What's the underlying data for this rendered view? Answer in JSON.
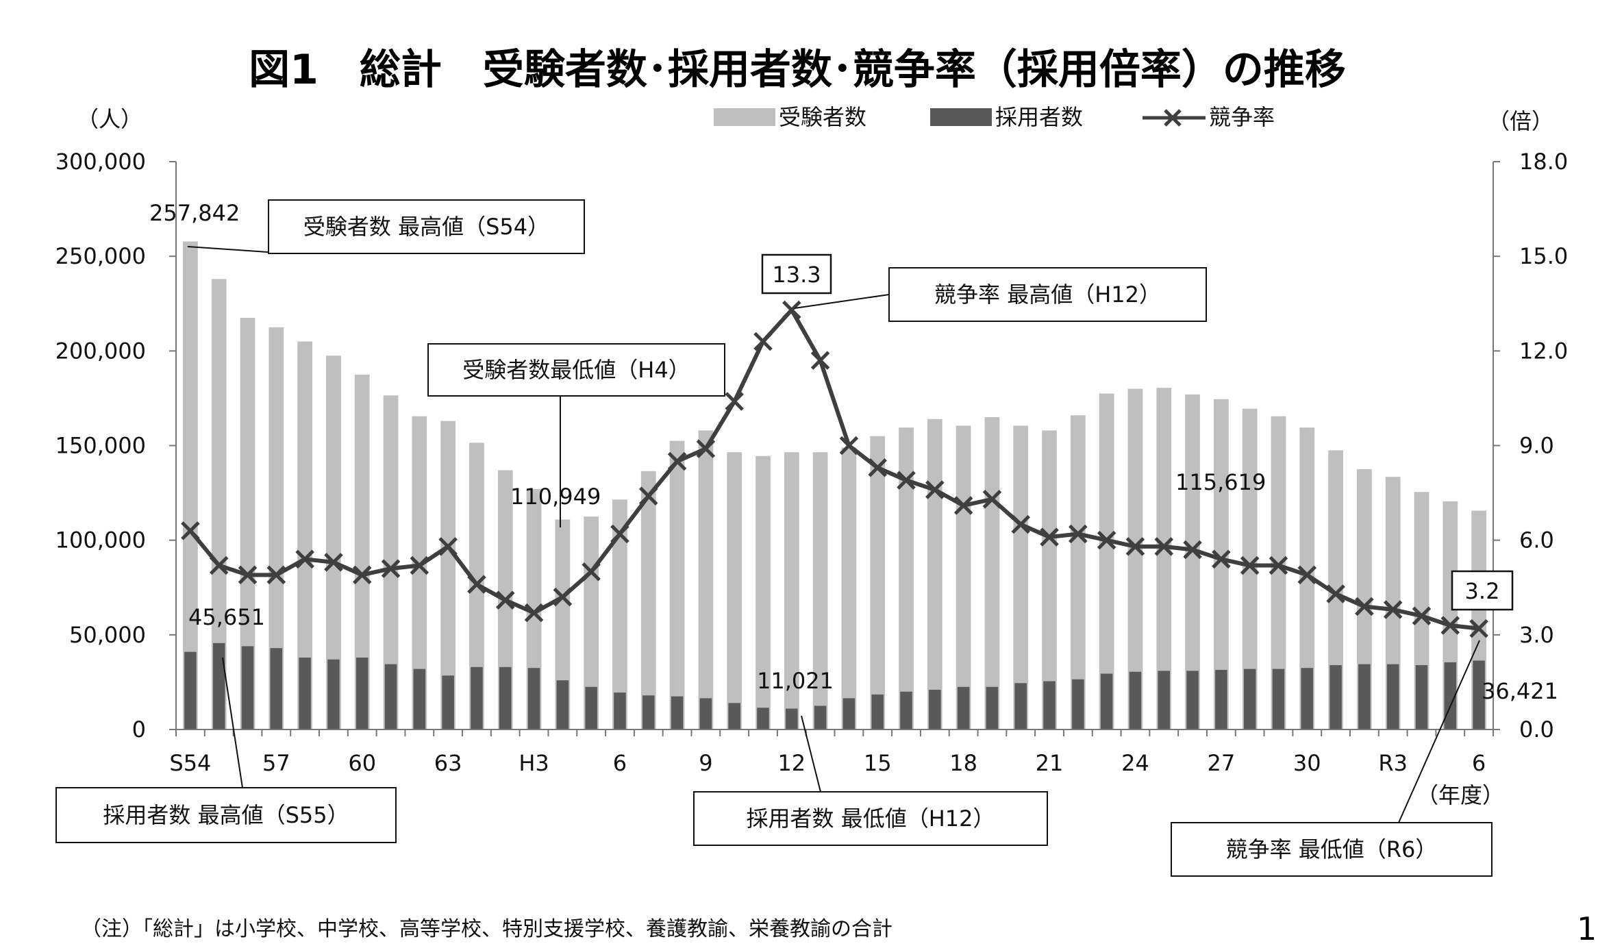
{
  "chart_data": {
    "type": "bar",
    "title": "図1　総計　受験者数･採用者数･競争率（採用倍率）の推移",
    "left_unit": "（人）",
    "right_unit": "（倍）",
    "x_unit": "（年度）",
    "left_ylim": [
      0,
      300000
    ],
    "right_ylim": [
      0,
      18
    ],
    "left_ticks": [
      "0",
      "50,000",
      "100,000",
      "150,000",
      "200,000",
      "250,000",
      "300,000"
    ],
    "right_ticks": [
      "0.0",
      "3.0",
      "6.0",
      "9.0",
      "12.0",
      "15.0",
      "18.0"
    ],
    "x_tick_labels": [
      "S54",
      "57",
      "60",
      "63",
      "H3",
      "6",
      "9",
      "12",
      "15",
      "18",
      "21",
      "24",
      "27",
      "30",
      "R3",
      "6"
    ],
    "legend": [
      "受験者数",
      "採用者数",
      "競争率"
    ],
    "legend_position": "top",
    "categories": [
      "S54",
      "S55",
      "S56",
      "S57",
      "S58",
      "S59",
      "S60",
      "S61",
      "S62",
      "S63",
      "H1",
      "H2",
      "H3",
      "H4",
      "H5",
      "H6",
      "H7",
      "H8",
      "H9",
      "H10",
      "H11",
      "H12",
      "H13",
      "H14",
      "H15",
      "H16",
      "H17",
      "H18",
      "H19",
      "H20",
      "H21",
      "H22",
      "H23",
      "H24",
      "H25",
      "H26",
      "H27",
      "H28",
      "H29",
      "H30",
      "R1",
      "R2",
      "R3",
      "R4",
      "R5",
      "R6"
    ],
    "series": [
      {
        "name": "受験者数",
        "type": "bar",
        "axis": "left",
        "color": "#bfbfbf",
        "values": [
          257842,
          238000,
          217500,
          212500,
          205000,
          197500,
          187500,
          176500,
          165500,
          163000,
          151500,
          137000,
          127000,
          110949,
          112500,
          121500,
          136500,
          152500,
          158000,
          146500,
          144500,
          146500,
          146500,
          149000,
          155000,
          159500,
          164000,
          160500,
          165000,
          160500,
          158000,
          166000,
          177500,
          180000,
          180500,
          177000,
          174500,
          169500,
          165500,
          159500,
          147500,
          137500,
          133500,
          125500,
          120500,
          115619
        ]
      },
      {
        "name": "採用者数",
        "type": "bar",
        "axis": "left",
        "color": "#595959",
        "values": [
          41000,
          45651,
          44000,
          43000,
          38000,
          37000,
          38000,
          34500,
          32000,
          28500,
          33000,
          33000,
          32500,
          26000,
          22500,
          19500,
          18000,
          17500,
          16500,
          14000,
          11500,
          11021,
          12500,
          16500,
          18500,
          20000,
          21000,
          22500,
          22500,
          24500,
          25500,
          26500,
          29500,
          30500,
          31000,
          31000,
          31500,
          32000,
          32000,
          32500,
          34000,
          34500,
          34500,
          34000,
          35500,
          36421
        ]
      },
      {
        "name": "競争率",
        "type": "line",
        "axis": "right",
        "color": "#3f3f3f",
        "values": [
          6.3,
          5.2,
          4.9,
          4.9,
          5.4,
          5.3,
          4.9,
          5.1,
          5.2,
          5.8,
          4.6,
          4.1,
          3.7,
          4.2,
          5.0,
          6.2,
          7.4,
          8.5,
          8.9,
          10.4,
          12.3,
          13.3,
          11.7,
          9.0,
          8.3,
          7.9,
          7.6,
          7.1,
          7.3,
          6.5,
          6.1,
          6.2,
          6.0,
          5.8,
          5.8,
          5.7,
          5.4,
          5.2,
          5.2,
          4.9,
          4.3,
          3.9,
          3.8,
          3.6,
          3.3,
          3.2
        ]
      }
    ],
    "data_labels": [
      {
        "text": "257,842",
        "series": 0,
        "index": 0
      },
      {
        "text": "45,651",
        "series": 1,
        "index": 1
      },
      {
        "text": "110,949",
        "series": 0,
        "index": 13
      },
      {
        "text": "11,021",
        "series": 1,
        "index": 21
      },
      {
        "text": "115,619",
        "series": 0,
        "index": 45
      },
      {
        "text": "36,421",
        "series": 1,
        "index": 45
      },
      {
        "text": "13.3",
        "series": 2,
        "index": 21,
        "boxed": true
      },
      {
        "text": "3.2",
        "series": 2,
        "index": 45,
        "boxed": true
      }
    ],
    "annotations": [
      {
        "text": "受験者数 最高値（S54）",
        "series": 0,
        "index": 0
      },
      {
        "text": "受験者数最低値（H4）",
        "series": 0,
        "index": 13
      },
      {
        "text": "競争率 最高値（H12）",
        "series": 2,
        "index": 21
      },
      {
        "text": "採用者数 最高値（S55）",
        "series": 1,
        "index": 1
      },
      {
        "text": "採用者数 最低値（H12）",
        "series": 1,
        "index": 21
      },
      {
        "text": "競争率 最低値（R6）",
        "series": 2,
        "index": 45
      }
    ],
    "note": "（注）「総計」は小学校、中学校、高等学校、特別支援学校、養護教諭、栄養教諭の合計",
    "page_number": "1"
  }
}
